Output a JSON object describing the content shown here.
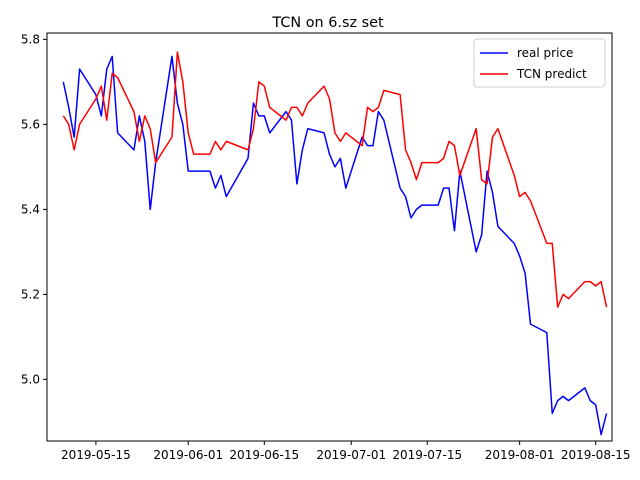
{
  "chart_data": {
    "type": "line",
    "title": "TCN on 6.sz set",
    "xlabel": "",
    "ylabel": "",
    "x_axis": "date",
    "xlim": [
      "2019-05-06",
      "2019-08-18"
    ],
    "ylim": [
      4.855,
      5.815
    ],
    "x_ticks": [
      "2019-05-15",
      "2019-06-01",
      "2019-06-15",
      "2019-07-01",
      "2019-07-15",
      "2019-08-01",
      "2019-08-15"
    ],
    "y_ticks": [
      "4.8",
      "5.0",
      "5.2",
      "5.4",
      "5.6",
      "5.8"
    ],
    "y_tick_values": [
      4.8,
      5.0,
      5.2,
      5.4,
      5.6,
      5.8
    ],
    "grid": false,
    "legend": "top-right",
    "series": [
      {
        "name": "real price",
        "color": "#0000ff",
        "points": [
          [
            "2019-05-09",
            5.7
          ],
          [
            "2019-05-10",
            5.64
          ],
          [
            "2019-05-11",
            5.57
          ],
          [
            "2019-05-12",
            5.73
          ],
          [
            "2019-05-15",
            5.67
          ],
          [
            "2019-05-16",
            5.62
          ],
          [
            "2019-05-17",
            5.73
          ],
          [
            "2019-05-18",
            5.76
          ],
          [
            "2019-05-19",
            5.58
          ],
          [
            "2019-05-22",
            5.54
          ],
          [
            "2019-05-23",
            5.62
          ],
          [
            "2019-05-24",
            5.56
          ],
          [
            "2019-05-25",
            5.4
          ],
          [
            "2019-05-26",
            5.51
          ],
          [
            "2019-05-29",
            5.76
          ],
          [
            "2019-05-30",
            5.65
          ],
          [
            "2019-05-31",
            5.6
          ],
          [
            "2019-06-01",
            5.49
          ],
          [
            "2019-06-05",
            5.49
          ],
          [
            "2019-06-06",
            5.45
          ],
          [
            "2019-06-07",
            5.48
          ],
          [
            "2019-06-08",
            5.43
          ],
          [
            "2019-06-12",
            5.52
          ],
          [
            "2019-06-13",
            5.65
          ],
          [
            "2019-06-14",
            5.62
          ],
          [
            "2019-06-15",
            5.62
          ],
          [
            "2019-06-16",
            5.58
          ],
          [
            "2019-06-19",
            5.63
          ],
          [
            "2019-06-20",
            5.61
          ],
          [
            "2019-06-21",
            5.46
          ],
          [
            "2019-06-22",
            5.54
          ],
          [
            "2019-06-23",
            5.59
          ],
          [
            "2019-06-26",
            5.58
          ],
          [
            "2019-06-27",
            5.53
          ],
          [
            "2019-06-28",
            5.5
          ],
          [
            "2019-06-29",
            5.52
          ],
          [
            "2019-06-30",
            5.45
          ],
          [
            "2019-07-03",
            5.57
          ],
          [
            "2019-07-04",
            5.55
          ],
          [
            "2019-07-05",
            5.55
          ],
          [
            "2019-07-06",
            5.63
          ],
          [
            "2019-07-07",
            5.61
          ],
          [
            "2019-07-10",
            5.45
          ],
          [
            "2019-07-11",
            5.43
          ],
          [
            "2019-07-12",
            5.38
          ],
          [
            "2019-07-13",
            5.4
          ],
          [
            "2019-07-14",
            5.41
          ],
          [
            "2019-07-17",
            5.41
          ],
          [
            "2019-07-18",
            5.45
          ],
          [
            "2019-07-19",
            5.45
          ],
          [
            "2019-07-20",
            5.35
          ],
          [
            "2019-07-21",
            5.49
          ],
          [
            "2019-07-24",
            5.3
          ],
          [
            "2019-07-25",
            5.34
          ],
          [
            "2019-07-26",
            5.49
          ],
          [
            "2019-07-27",
            5.44
          ],
          [
            "2019-07-28",
            5.36
          ],
          [
            "2019-07-31",
            5.32
          ],
          [
            "2019-08-01",
            5.29
          ],
          [
            "2019-08-02",
            5.25
          ],
          [
            "2019-08-03",
            5.13
          ],
          [
            "2019-08-06",
            5.11
          ],
          [
            "2019-08-07",
            4.92
          ],
          [
            "2019-08-08",
            4.95
          ],
          [
            "2019-08-09",
            4.96
          ],
          [
            "2019-08-10",
            4.95
          ],
          [
            "2019-08-13",
            4.98
          ],
          [
            "2019-08-14",
            4.95
          ],
          [
            "2019-08-15",
            4.94
          ],
          [
            "2019-08-16",
            4.87
          ],
          [
            "2019-08-17",
            4.92
          ]
        ]
      },
      {
        "name": "TCN predict",
        "color": "#ff0000",
        "points": [
          [
            "2019-05-09",
            5.62
          ],
          [
            "2019-05-10",
            5.6
          ],
          [
            "2019-05-11",
            5.54
          ],
          [
            "2019-05-12",
            5.6
          ],
          [
            "2019-05-15",
            5.66
          ],
          [
            "2019-05-16",
            5.69
          ],
          [
            "2019-05-17",
            5.61
          ],
          [
            "2019-05-18",
            5.72
          ],
          [
            "2019-05-19",
            5.71
          ],
          [
            "2019-05-22",
            5.63
          ],
          [
            "2019-05-23",
            5.56
          ],
          [
            "2019-05-24",
            5.62
          ],
          [
            "2019-05-25",
            5.59
          ],
          [
            "2019-05-26",
            5.51
          ],
          [
            "2019-05-29",
            5.57
          ],
          [
            "2019-05-30",
            5.77
          ],
          [
            "2019-05-31",
            5.7
          ],
          [
            "2019-06-01",
            5.58
          ],
          [
            "2019-06-02",
            5.53
          ],
          [
            "2019-06-05",
            5.53
          ],
          [
            "2019-06-06",
            5.56
          ],
          [
            "2019-06-07",
            5.54
          ],
          [
            "2019-06-08",
            5.56
          ],
          [
            "2019-06-12",
            5.54
          ],
          [
            "2019-06-13",
            5.59
          ],
          [
            "2019-06-14",
            5.7
          ],
          [
            "2019-06-15",
            5.69
          ],
          [
            "2019-06-16",
            5.64
          ],
          [
            "2019-06-19",
            5.61
          ],
          [
            "2019-06-20",
            5.64
          ],
          [
            "2019-06-21",
            5.64
          ],
          [
            "2019-06-22",
            5.62
          ],
          [
            "2019-06-23",
            5.65
          ],
          [
            "2019-06-26",
            5.69
          ],
          [
            "2019-06-27",
            5.66
          ],
          [
            "2019-06-28",
            5.58
          ],
          [
            "2019-06-29",
            5.56
          ],
          [
            "2019-06-30",
            5.58
          ],
          [
            "2019-07-03",
            5.55
          ],
          [
            "2019-07-04",
            5.64
          ],
          [
            "2019-07-05",
            5.63
          ],
          [
            "2019-07-06",
            5.64
          ],
          [
            "2019-07-07",
            5.68
          ],
          [
            "2019-07-10",
            5.67
          ],
          [
            "2019-07-11",
            5.54
          ],
          [
            "2019-07-12",
            5.51
          ],
          [
            "2019-07-13",
            5.47
          ],
          [
            "2019-07-14",
            5.51
          ],
          [
            "2019-07-17",
            5.51
          ],
          [
            "2019-07-18",
            5.52
          ],
          [
            "2019-07-19",
            5.56
          ],
          [
            "2019-07-20",
            5.55
          ],
          [
            "2019-07-21",
            5.48
          ],
          [
            "2019-07-24",
            5.59
          ],
          [
            "2019-07-25",
            5.47
          ],
          [
            "2019-07-26",
            5.46
          ],
          [
            "2019-07-27",
            5.57
          ],
          [
            "2019-07-28",
            5.59
          ],
          [
            "2019-07-31",
            5.48
          ],
          [
            "2019-08-01",
            5.43
          ],
          [
            "2019-08-02",
            5.44
          ],
          [
            "2019-08-03",
            5.42
          ],
          [
            "2019-08-06",
            5.32
          ],
          [
            "2019-08-07",
            5.32
          ],
          [
            "2019-08-08",
            5.17
          ],
          [
            "2019-08-09",
            5.2
          ],
          [
            "2019-08-10",
            5.19
          ],
          [
            "2019-08-13",
            5.23
          ],
          [
            "2019-08-14",
            5.23
          ],
          [
            "2019-08-15",
            5.22
          ],
          [
            "2019-08-16",
            5.23
          ],
          [
            "2019-08-17",
            5.17
          ]
        ]
      }
    ]
  }
}
